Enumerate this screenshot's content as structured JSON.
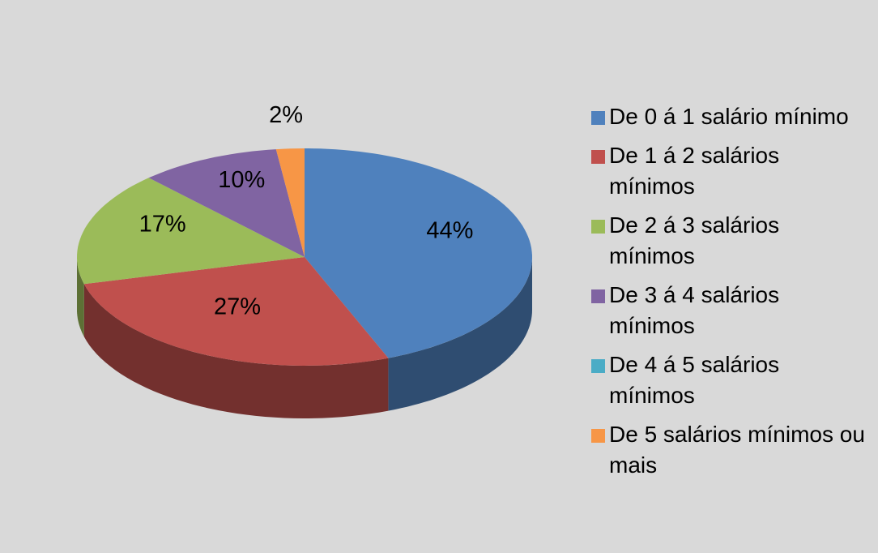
{
  "chart_data": {
    "type": "pie",
    "categories": [
      "De 0 á 1 salário mínimo",
      "De 1 á 2 salários mínimos",
      "De 2 á 3 salários mínimos",
      "De 3 á 4 salários mínimos",
      "De 4 á 5 salários mínimos",
      "De 5 salários mínimos ou mais"
    ],
    "values": [
      44,
      27,
      17,
      10,
      0,
      2
    ],
    "value_labels": [
      "44%",
      "27%",
      "17%",
      "10%",
      null,
      "2%"
    ],
    "colors": [
      "#4f81bd",
      "#c0504d",
      "#9bbb59",
      "#8064a2",
      "#4bacc6",
      "#f79646"
    ],
    "legend": "right"
  }
}
